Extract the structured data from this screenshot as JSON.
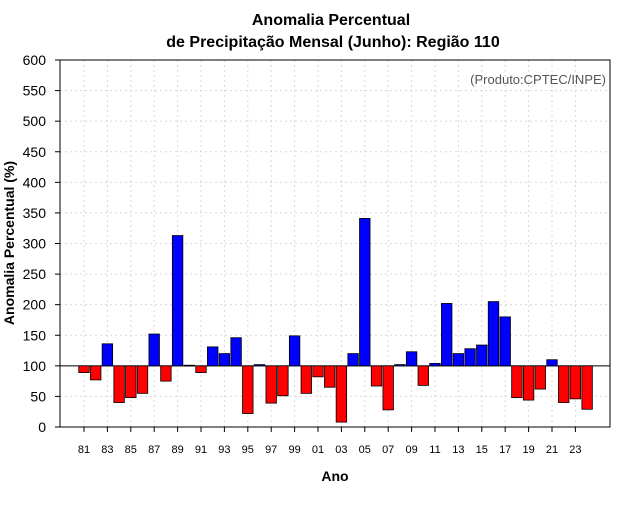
{
  "chart_data": {
    "type": "bar",
    "title_line1": "Anomalia Percentual",
    "title_line2": "de Precipitação Mensal (Junho): Região 110",
    "credit": "(Produto:CPTEC/INPE)",
    "xlabel": "Ano",
    "ylabel": "Anomalia Percentual (%)",
    "ylim": [
      0,
      600
    ],
    "yticks": [
      0,
      50,
      100,
      150,
      200,
      250,
      300,
      350,
      400,
      450,
      500,
      550,
      600
    ],
    "baseline": 100,
    "grid": true,
    "colors": {
      "above": "#0000ff",
      "below": "#ff0000"
    },
    "x_tick_labels": [
      "81",
      "83",
      "85",
      "87",
      "89",
      "91",
      "93",
      "95",
      "97",
      "99",
      "01",
      "03",
      "05",
      "07",
      "09",
      "11",
      "13",
      "15",
      "17",
      "19",
      "21",
      "23"
    ],
    "categories": [
      "81",
      "82",
      "83",
      "84",
      "85",
      "86",
      "87",
      "88",
      "89",
      "90",
      "91",
      "92",
      "93",
      "94",
      "95",
      "96",
      "97",
      "98",
      "99",
      "00",
      "01",
      "02",
      "03",
      "04",
      "05",
      "06",
      "07",
      "08",
      "09",
      "10",
      "11",
      "12",
      "13",
      "14",
      "15",
      "16",
      "17",
      "18",
      "19",
      "20",
      "21",
      "22",
      "23",
      "24"
    ],
    "values": [
      89,
      77,
      136,
      40,
      48,
      55,
      152,
      75,
      313,
      101,
      89,
      131,
      120,
      146,
      22,
      102,
      39,
      51,
      149,
      55,
      82,
      65,
      8,
      120,
      341,
      67,
      28,
      102,
      123,
      68,
      104,
      202,
      120,
      128,
      134,
      205,
      180,
      48,
      44,
      62,
      110,
      40,
      46,
      29
    ]
  }
}
